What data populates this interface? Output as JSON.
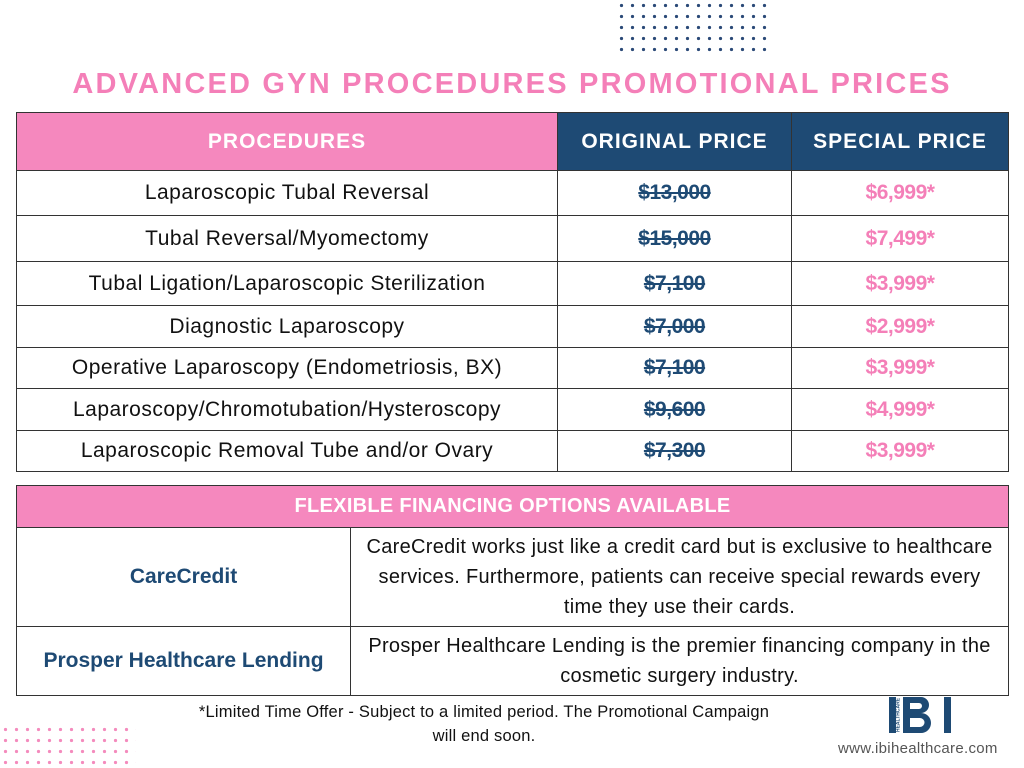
{
  "title": "ADVANCED GYN PROCEDURES PROMOTIONAL PRICES",
  "table": {
    "headers": [
      "PROCEDURES",
      "ORIGINAL PRICE",
      "SPECIAL PRICE"
    ],
    "rows": [
      {
        "procedure": "Laparoscopic Tubal Reversal",
        "original": "$13,000",
        "special": "$6,999*"
      },
      {
        "procedure": "Tubal Reversal/Myomectomy",
        "original": "$15,000",
        "special": "$7,499*"
      },
      {
        "procedure": "Tubal Ligation/Laparoscopic Sterilization",
        "original": "$7,100",
        "special": "$3,999*"
      },
      {
        "procedure": "Diagnostic Laparoscopy",
        "original": "$7,000",
        "special": "$2,999*"
      },
      {
        "procedure": "Operative Laparoscopy (Endometriosis, BX)",
        "original": "$7,100",
        "special": "$3,999*"
      },
      {
        "procedure": "Laparoscopy/Chromotubation/Hysteroscopy",
        "original": "$9,600",
        "special": "$4,999*"
      },
      {
        "procedure": "Laparoscopic Removal Tube and/or Ovary",
        "original": "$7,300",
        "special": "$3,999*"
      }
    ]
  },
  "financing": {
    "header": "FLEXIBLE FINANCING OPTIONS AVAILABLE",
    "options": [
      {
        "name": "CareCredit",
        "description": "CareCredit works just like a credit card but is exclusive to healthcare services. Furthermore, patients can receive special rewards every time they use their cards."
      },
      {
        "name": "Prosper Healthcare Lending",
        "description": "Prosper Healthcare Lending is the premier financing company in the cosmetic surgery industry."
      }
    ]
  },
  "footnote": "*Limited Time Offer - Subject to a limited period. The Promotional Campaign will end soon.",
  "logo": {
    "letters": "IBI",
    "tagline": "HEALTHCARE"
  },
  "website": "www.ibihealthcare.com",
  "colors": {
    "pink": "#f588be",
    "navy": "#1e4a74"
  }
}
